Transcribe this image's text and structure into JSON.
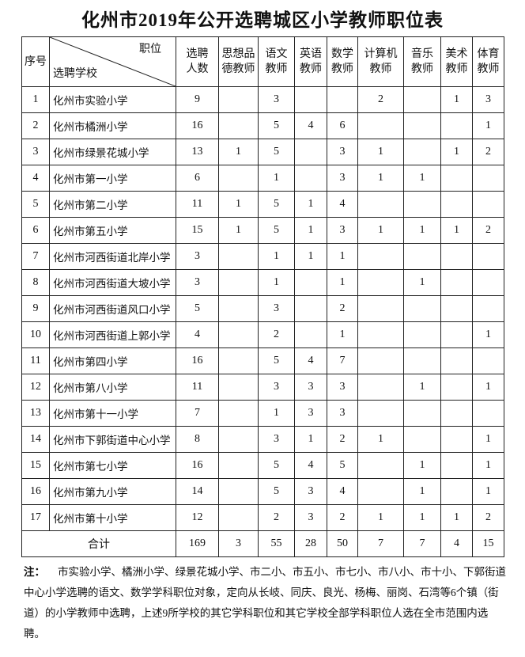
{
  "title": "化州市2019年公开选聘城区小学教师职位表",
  "table": {
    "header": {
      "index": "序号",
      "position": "职位",
      "school": "选聘学校",
      "columns": [
        "选聘人数",
        "思想品德教师",
        "语文教师",
        "英语教师",
        "数学教师",
        "计算机教师",
        "音乐教师",
        "美术教师",
        "体育教师"
      ]
    },
    "rows": [
      [
        1,
        "化州市实验小学",
        9,
        null,
        3,
        null,
        null,
        2,
        null,
        1,
        3
      ],
      [
        2,
        "化州市橘洲小学",
        16,
        null,
        5,
        4,
        6,
        null,
        null,
        null,
        1
      ],
      [
        3,
        "化州市绿景花城小学",
        13,
        1,
        5,
        null,
        3,
        1,
        null,
        1,
        2
      ],
      [
        4,
        "化州市第一小学",
        6,
        null,
        1,
        null,
        3,
        1,
        1,
        null,
        null
      ],
      [
        5,
        "化州市第二小学",
        11,
        1,
        5,
        1,
        4,
        null,
        null,
        null,
        null
      ],
      [
        6,
        "化州市第五小学",
        15,
        1,
        5,
        1,
        3,
        1,
        1,
        1,
        2
      ],
      [
        7,
        "化州市河西街道北岸小学",
        3,
        null,
        1,
        1,
        1,
        null,
        null,
        null,
        null
      ],
      [
        8,
        "化州市河西街道大坡小学",
        3,
        null,
        1,
        null,
        1,
        null,
        1,
        null,
        null
      ],
      [
        9,
        "化州市河西街道风口小学",
        5,
        null,
        3,
        null,
        2,
        null,
        null,
        null,
        null
      ],
      [
        10,
        "化州市河西街道上郭小学",
        4,
        null,
        2,
        null,
        1,
        null,
        null,
        null,
        1
      ],
      [
        11,
        "化州市第四小学",
        16,
        null,
        5,
        4,
        7,
        null,
        null,
        null,
        null
      ],
      [
        12,
        "化州市第八小学",
        11,
        null,
        3,
        3,
        3,
        null,
        1,
        null,
        1
      ],
      [
        13,
        "化州市第十一小学",
        7,
        null,
        1,
        3,
        3,
        null,
        null,
        null,
        null
      ],
      [
        14,
        "化州市下郭街道中心小学",
        8,
        null,
        3,
        1,
        2,
        1,
        null,
        null,
        1
      ],
      [
        15,
        "化州市第七小学",
        16,
        null,
        5,
        4,
        5,
        null,
        1,
        null,
        1
      ],
      [
        16,
        "化州市第九小学",
        14,
        null,
        5,
        3,
        4,
        null,
        1,
        null,
        1
      ],
      [
        17,
        "化州市第十小学",
        12,
        null,
        2,
        3,
        2,
        1,
        1,
        1,
        2
      ]
    ],
    "total": {
      "label": "合计",
      "values": [
        169,
        3,
        55,
        28,
        50,
        7,
        7,
        4,
        15
      ]
    }
  },
  "note": {
    "label": "注：",
    "text": "市实验小学、橘洲小学、绿景花城小学、市二小、市五小、市七小、市八小、市十小、下郭街道中心小学选聘的语文、数学学科职位对象，定向从长岐、同庆、良光、杨梅、丽岗、石湾等6个镇（街道）的小学教师中选聘，上述9所学校的其它学科职位和其它学校全部学科职位人选在全市范围内选聘。"
  }
}
